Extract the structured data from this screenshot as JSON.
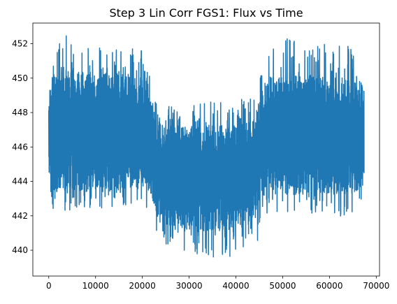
{
  "chart_data": {
    "type": "line",
    "title": "Step 3 Lin Corr FGS1: Flux vs Time",
    "xlabel": "",
    "ylabel": "",
    "xlim": [
      -3400,
      70700
    ],
    "ylim": [
      438.5,
      453.2
    ],
    "x_ticks": [
      0,
      10000,
      20000,
      30000,
      40000,
      50000,
      60000,
      70000
    ],
    "y_ticks": [
      440,
      442,
      444,
      446,
      448,
      450,
      452
    ],
    "grid": false,
    "color": "#1f77b4",
    "series": [
      {
        "x_range": [
          0,
          67400
        ],
        "envelope_x": [
          0,
          1000,
          4000,
          8000,
          12000,
          16000,
          20000,
          21500,
          23000,
          24000,
          30000,
          36000,
          42000,
          44500,
          45500,
          47000,
          52000,
          58000,
          64000,
          67400
        ],
        "envelope_upper": [
          449.8,
          451.7,
          452.8,
          452.4,
          452.0,
          451.8,
          451.6,
          450.2,
          448.8,
          448.3,
          448.5,
          448.7,
          448.9,
          449.2,
          450.6,
          451.8,
          452.5,
          452.0,
          451.9,
          451.6
        ],
        "envelope_lower": [
          443.9,
          442.3,
          442.3,
          442.4,
          442.4,
          442.6,
          442.7,
          442.3,
          440.8,
          440.4,
          439.8,
          439.5,
          439.7,
          440.2,
          441.8,
          442.2,
          442.0,
          442.1,
          441.8,
          442.5
        ],
        "band_upper": [
          448.8,
          450.3,
          450.5,
          450.4,
          450.3,
          450.2,
          450.0,
          449.0,
          447.7,
          447.3,
          447.2,
          447.3,
          447.5,
          448.2,
          449.5,
          450.1,
          450.2,
          450.1,
          450.0,
          449.8
        ],
        "band_lower": [
          444.6,
          443.4,
          443.3,
          443.4,
          443.4,
          443.5,
          443.6,
          443.4,
          442.1,
          441.5,
          441.2,
          441.1,
          441.3,
          441.9,
          443.1,
          443.3,
          443.2,
          443.3,
          443.3,
          443.5
        ]
      }
    ]
  }
}
